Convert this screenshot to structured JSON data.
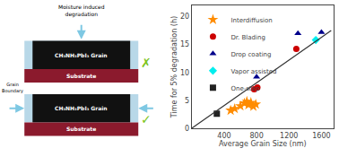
{
  "chart_data": {
    "type": "scatter",
    "xlabel": "Average Grain Size (nm)",
    "ylabel": "Time for 5% degradation (h)",
    "xlim": [
      0,
      1750
    ],
    "ylim": [
      0,
      22
    ],
    "xticks": [
      400,
      800,
      1200,
      1600
    ],
    "yticks": [
      0,
      5,
      10,
      15,
      20
    ],
    "grid": false,
    "legend": "upper left",
    "series": [
      {
        "name": "Interdiffusion",
        "color": "#ff8c00",
        "marker": "star",
        "x": [
          480,
          530,
          600,
          650,
          680,
          700,
          730,
          760,
          790
        ],
        "values": [
          3.2,
          3.5,
          4.0,
          4.5,
          4.8,
          4.2,
          4.6,
          3.9,
          4.3
        ]
      },
      {
        "name": "Dr. Blading",
        "color": "#cc0000",
        "marker": "circle",
        "x": [
          770,
          810,
          1290
        ],
        "values": [
          7.0,
          7.3,
          14.2
        ]
      },
      {
        "name": "Drop coating",
        "color": "#00008b",
        "marker": "triangle-up",
        "x": [
          800,
          1310,
          1600
        ],
        "values": [
          9.2,
          17.0,
          17.2
        ]
      },
      {
        "name": "Vapor assisted",
        "color": "#00eeee",
        "marker": "diamond",
        "x": [
          1530
        ],
        "values": [
          15.8
        ]
      },
      {
        "name": "One-step",
        "color": "#222222",
        "marker": "square",
        "x": [
          310
        ],
        "values": [
          2.6
        ]
      },
      {
        "type": "line",
        "color": "#333333",
        "x": [
          0,
          1720
        ],
        "values": [
          0,
          17.5
        ]
      }
    ],
    "annotations": [
      "Moisture induced\ndegradation",
      "Grain\nBoundary",
      "CH₃NH₃PbI₃ Grain",
      "Substrate",
      "✗",
      "✓"
    ]
  }
}
